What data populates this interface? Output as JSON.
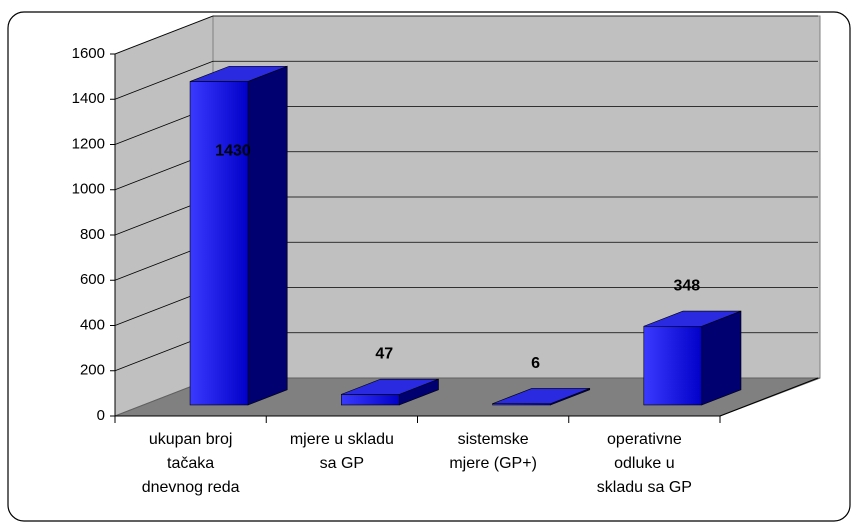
{
  "chart_data": {
    "type": "bar3d",
    "categories": [
      "ukupan broj\ntačaka\ndnevnog reda",
      "mjere u skladu\nsa GP",
      "sistemske\nmjere (GP+)",
      "operativne\nodluke u\nskladu sa GP"
    ],
    "values": [
      1430,
      47,
      6,
      348
    ],
    "color": "#1a1aff",
    "ylim": [
      0,
      1600
    ],
    "yticks": [
      0,
      200,
      400,
      600,
      800,
      1000,
      1200,
      1400,
      1600
    ],
    "grid": true
  }
}
